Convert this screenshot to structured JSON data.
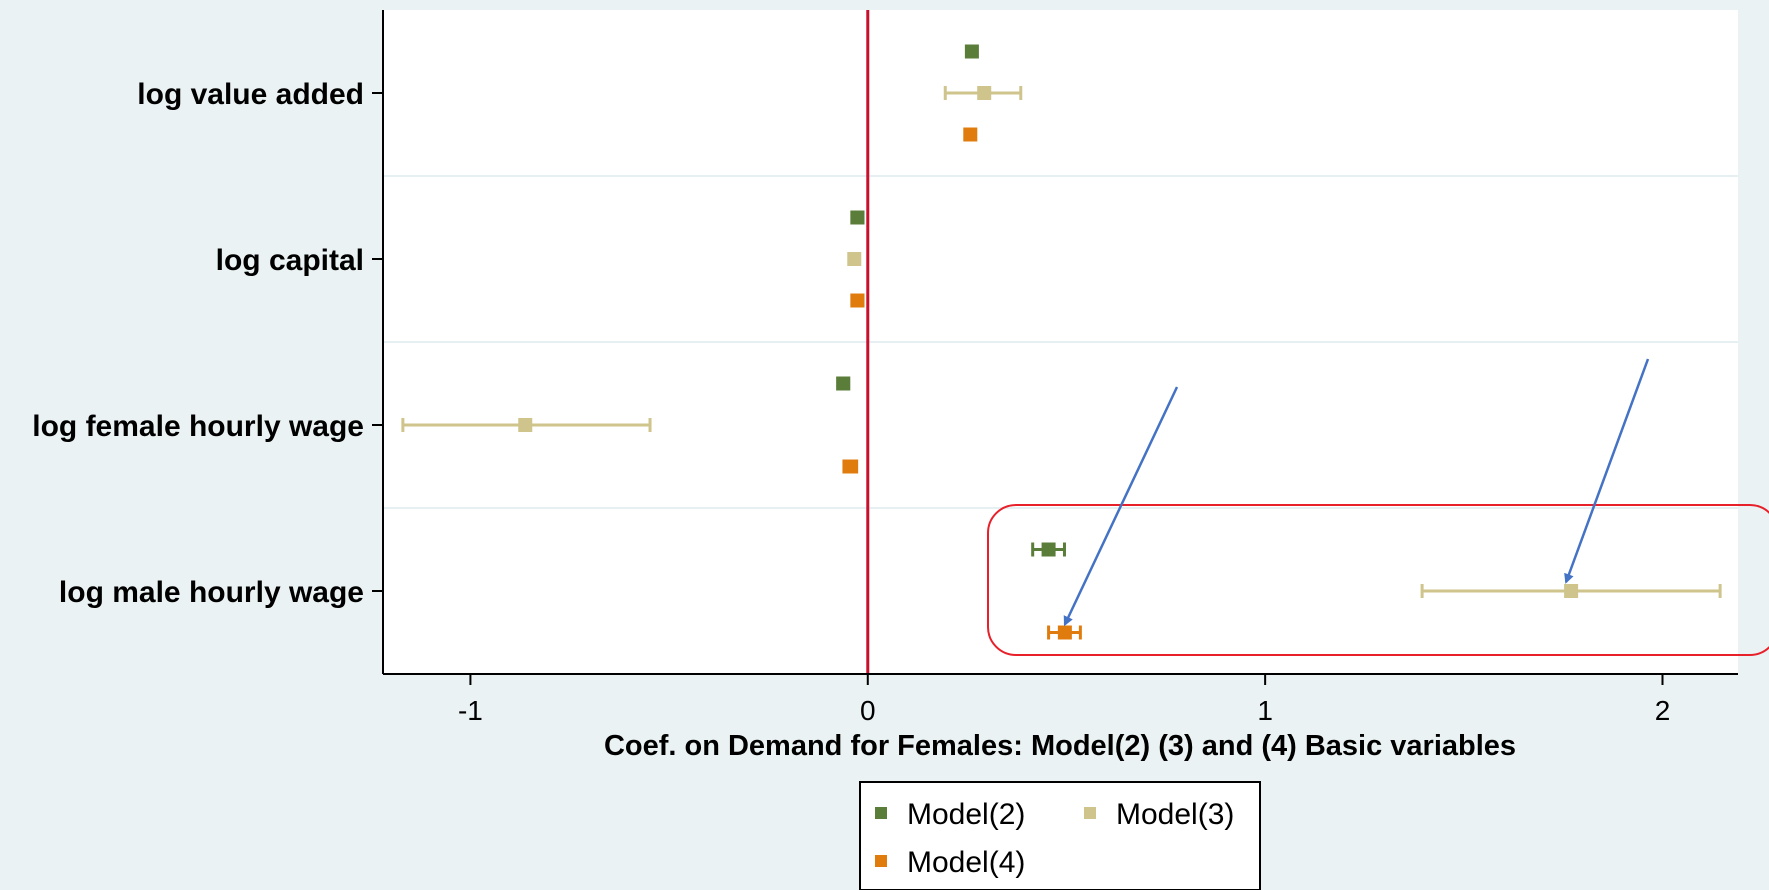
{
  "chart_data": {
    "type": "scatter",
    "subtype": "coefficient-plot-with-confidence-intervals",
    "orientation": "horizontal",
    "title": "",
    "xlabel": "Coef. on Demand for Females: Model(2) (3) and (4) Basic variables",
    "ylabel": "",
    "xlim": [
      -1.22,
      2.19
    ],
    "x_ticks": [
      -1,
      0,
      1,
      2
    ],
    "x_tick_labels": [
      "-1",
      "0",
      "1",
      "2"
    ],
    "reference_line": {
      "x": 0,
      "color": "#c8102e"
    },
    "categories": [
      "log value added",
      "log capital",
      "log female hourly wage",
      "log male hourly wage"
    ],
    "series": [
      {
        "name": "Model(2)",
        "color": "#5a7d3a",
        "points": [
          {
            "category": "log value added",
            "coef": 0.262,
            "ci": [
              0.25,
              0.275
            ]
          },
          {
            "category": "log capital",
            "coef": -0.026,
            "ci": [
              -0.04,
              -0.012
            ]
          },
          {
            "category": "log female hourly wage",
            "coef": -0.062,
            "ci": [
              -0.075,
              -0.048
            ]
          },
          {
            "category": "log male hourly wage",
            "coef": 0.455,
            "ci": [
              0.415,
              0.495
            ]
          }
        ]
      },
      {
        "name": "Model(3)",
        "color": "#cfc48c",
        "points": [
          {
            "category": "log value added",
            "coef": 0.293,
            "ci": [
              0.195,
              0.385
            ]
          },
          {
            "category": "log capital",
            "coef": -0.034,
            "ci": [
              -0.045,
              -0.022
            ]
          },
          {
            "category": "log female hourly wage",
            "coef": -0.862,
            "ci": [
              -1.17,
              -0.548
            ]
          },
          {
            "category": "log male hourly wage",
            "coef": 1.77,
            "ci": [
              1.395,
              2.145
            ]
          }
        ]
      },
      {
        "name": "Model(4)",
        "color": "#e07c0e",
        "points": [
          {
            "category": "log value added",
            "coef": 0.258,
            "ci": [
              0.245,
              0.27
            ]
          },
          {
            "category": "log capital",
            "coef": -0.026,
            "ci": [
              -0.04,
              -0.012
            ]
          },
          {
            "category": "log female hourly wage",
            "coef": -0.044,
            "ci": [
              -0.06,
              -0.028
            ]
          },
          {
            "category": "log male hourly wage",
            "coef": 0.496,
            "ci": [
              0.455,
              0.535
            ]
          }
        ]
      }
    ],
    "grid": "horizontal separators between categories",
    "legend": {
      "placement": "bottom",
      "columns": 2
    },
    "annotations": [
      {
        "type": "rounded-rectangle",
        "color": "#e8202a",
        "encloses": "log male hourly wage estimates"
      },
      {
        "type": "arrow",
        "color": "#4472c4",
        "points_to": "Model(4) log male hourly wage"
      },
      {
        "type": "arrow",
        "color": "#4472c4",
        "points_to": "Model(3) log male hourly wage"
      }
    ],
    "colors": {
      "background": "#eaf2f3",
      "plot_background": "#ffffff",
      "axis": "#000000"
    }
  }
}
